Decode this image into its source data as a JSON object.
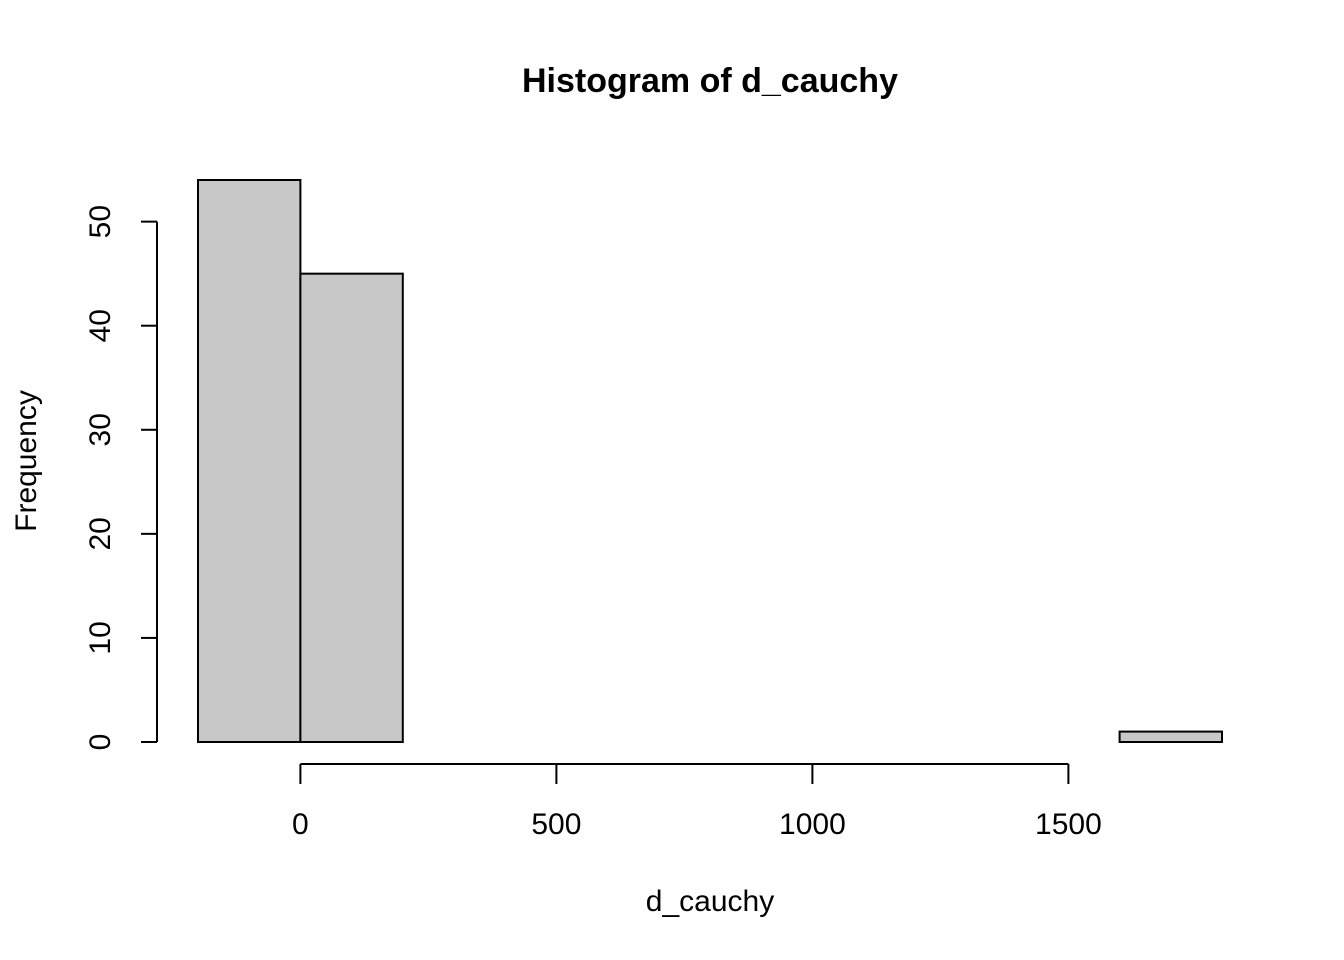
{
  "chart_data": {
    "type": "bar",
    "title": "Histogram of d_cauchy",
    "xlabel": "d_cauchy",
    "ylabel": "Frequency",
    "bins": [
      {
        "from": -200,
        "to": 0,
        "count": 54
      },
      {
        "from": 0,
        "to": 200,
        "count": 45
      },
      {
        "from": 200,
        "to": 400,
        "count": 0
      },
      {
        "from": 400,
        "to": 600,
        "count": 0
      },
      {
        "from": 600,
        "to": 800,
        "count": 0
      },
      {
        "from": 800,
        "to": 1000,
        "count": 0
      },
      {
        "from": 1000,
        "to": 1200,
        "count": 0
      },
      {
        "from": 1200,
        "to": 1400,
        "count": 0
      },
      {
        "from": 1400,
        "to": 1600,
        "count": 0
      },
      {
        "from": 1600,
        "to": 1800,
        "count": 1
      }
    ],
    "xticks": [
      0,
      500,
      1000,
      1500
    ],
    "xtick_labels": [
      "0",
      "500",
      "1000",
      "1500"
    ],
    "yticks": [
      0,
      10,
      20,
      30,
      40,
      50
    ],
    "ytick_labels": [
      "0",
      "10",
      "20",
      "30",
      "40",
      "50"
    ],
    "xlim": [
      -200,
      1800
    ],
    "ylim": [
      0,
      54
    ],
    "bar_color": "#c8c8c8",
    "grid": false,
    "legend": "none"
  }
}
